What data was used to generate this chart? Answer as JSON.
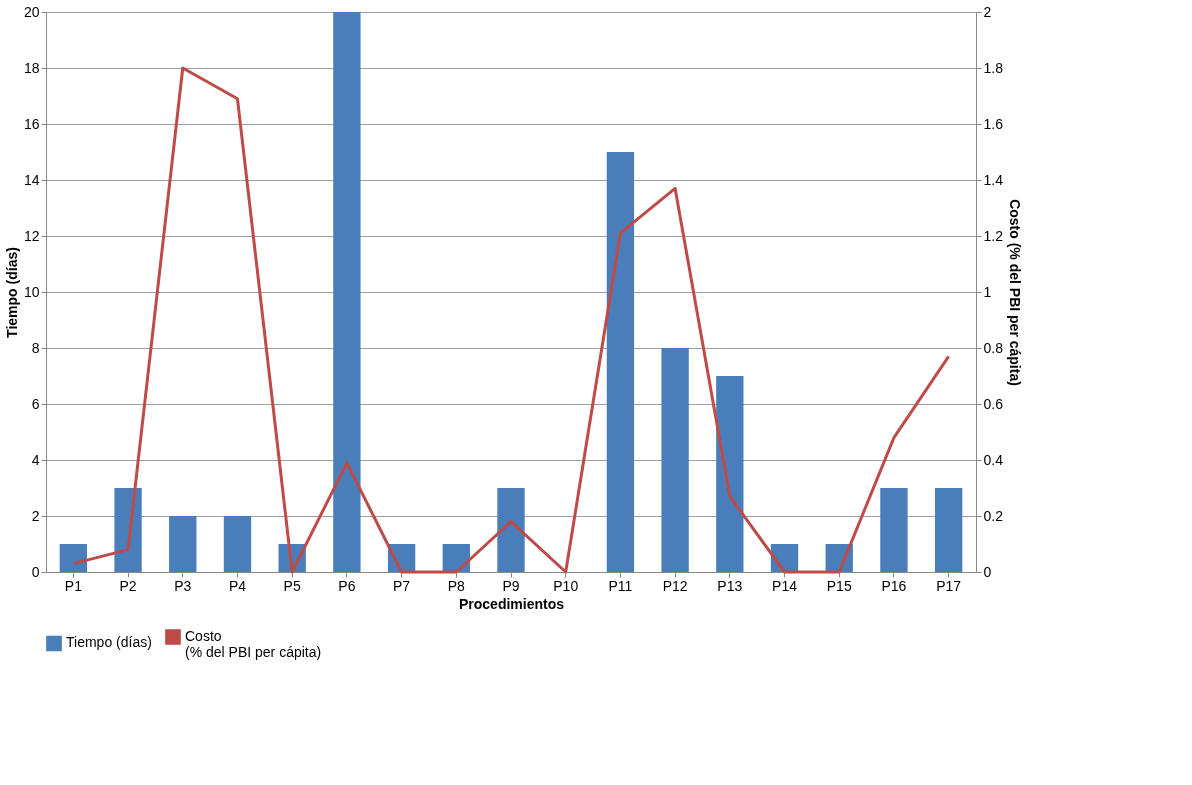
{
  "chart_data": {
    "type": "bar",
    "categories": [
      "P1",
      "P2",
      "P3",
      "P4",
      "P5",
      "P6",
      "P7",
      "P8",
      "P9",
      "P10",
      "P11",
      "P12",
      "P13",
      "P14",
      "P15",
      "P16",
      "P17"
    ],
    "xlabel": "Procedimientos",
    "ylabel": "Tiempo (días)",
    "y2label": "Costo (% del PBI per cápita)",
    "series": [
      {
        "name": "Tiempo (días)",
        "color": "#4a7ebb",
        "values": [
          1,
          3,
          2,
          2,
          1,
          20,
          1,
          1,
          3,
          0,
          15,
          8,
          7,
          1,
          1,
          3,
          3
        ]
      },
      {
        "name": "Costo\n(% del PBI per cápita)",
        "color": "#be4b48",
        "type": "line",
        "axis": "y2",
        "values": [
          0.03,
          0.08,
          1.8,
          1.69,
          0,
          0.39,
          0,
          0,
          0.18,
          0,
          1.21,
          1.37,
          0.27,
          0,
          0,
          0.48,
          0.77
        ]
      }
    ],
    "ylim": [
      0,
      20
    ],
    "yticks": [
      0,
      2,
      4,
      6,
      8,
      10,
      12,
      14,
      16,
      18,
      20
    ],
    "y2lim": [
      0,
      2
    ],
    "y2ticks": [
      0,
      0.2,
      0.4,
      0.6,
      0.8,
      1,
      1.2,
      1.4,
      1.6,
      1.8,
      2
    ],
    "grid": "y",
    "legend": "bottom"
  }
}
